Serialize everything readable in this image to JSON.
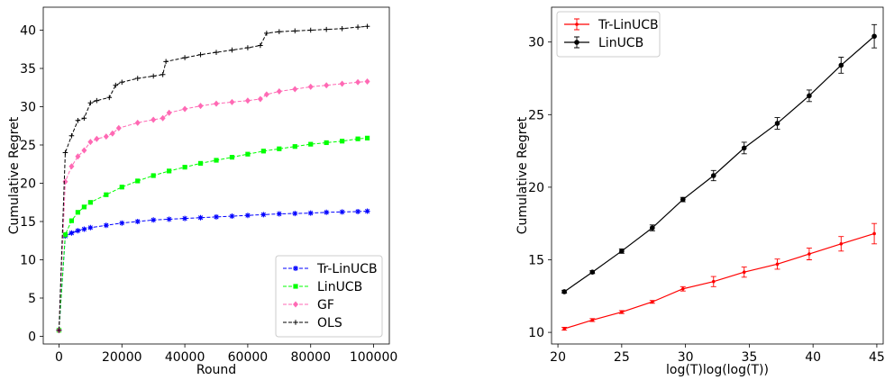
{
  "chart_data": [
    {
      "type": "line",
      "xlabel": "Round",
      "ylabel": "Cumulative Regret",
      "xlim": [
        -5000,
        105000
      ],
      "ylim": [
        -1,
        43
      ],
      "xticks": [
        0,
        20000,
        40000,
        60000,
        80000,
        100000
      ],
      "xtick_labels": [
        "0",
        "20000",
        "40000",
        "60000",
        "80000",
        "100000"
      ],
      "yticks": [
        0,
        5,
        10,
        15,
        20,
        25,
        30,
        35,
        40
      ],
      "ytick_labels": [
        "0",
        "5",
        "10",
        "15",
        "20",
        "25",
        "30",
        "35",
        "40"
      ],
      "legend_position": "bottom-right",
      "grid": false,
      "series": [
        {
          "name": "Tr-LinUCB",
          "color": "#0000ff",
          "marker": "star",
          "x": [
            0,
            2000,
            4000,
            6000,
            8000,
            10000,
            15000,
            20000,
            25000,
            30000,
            35000,
            40000,
            45000,
            50000,
            55000,
            60000,
            65000,
            70000,
            75000,
            80000,
            85000,
            90000,
            95000,
            98000
          ],
          "y": [
            0.8,
            13.1,
            13.5,
            13.8,
            14.0,
            14.2,
            14.5,
            14.8,
            15.0,
            15.2,
            15.3,
            15.4,
            15.5,
            15.6,
            15.7,
            15.8,
            15.9,
            16.0,
            16.05,
            16.1,
            16.2,
            16.25,
            16.3,
            16.35
          ]
        },
        {
          "name": "LinUCB",
          "color": "#00ff00",
          "marker": "square",
          "x": [
            0,
            2000,
            4000,
            6000,
            8000,
            10000,
            15000,
            20000,
            25000,
            30000,
            35000,
            40000,
            45000,
            50000,
            55000,
            60000,
            65000,
            70000,
            75000,
            80000,
            85000,
            90000,
            95000,
            98000
          ],
          "y": [
            0.8,
            13.3,
            15.1,
            16.2,
            16.9,
            17.5,
            18.5,
            19.5,
            20.3,
            21.0,
            21.6,
            22.1,
            22.6,
            23.0,
            23.4,
            23.8,
            24.2,
            24.5,
            24.8,
            25.1,
            25.3,
            25.5,
            25.8,
            25.9
          ]
        },
        {
          "name": "GF",
          "color": "#ff69b4",
          "marker": "diamond",
          "x": [
            0,
            2000,
            4000,
            6000,
            8000,
            10000,
            12000,
            15000,
            17000,
            19000,
            25000,
            30000,
            33000,
            35000,
            40000,
            45000,
            50000,
            55000,
            60000,
            64000,
            66000,
            70000,
            75000,
            80000,
            85000,
            90000,
            95000,
            98000
          ],
          "y": [
            0.8,
            20.2,
            22.2,
            23.5,
            24.3,
            25.4,
            25.8,
            26.1,
            26.5,
            27.2,
            27.9,
            28.3,
            28.5,
            29.2,
            29.7,
            30.1,
            30.4,
            30.6,
            30.8,
            31.0,
            31.6,
            32.0,
            32.3,
            32.6,
            32.8,
            33.0,
            33.2,
            33.3
          ]
        },
        {
          "name": "OLS",
          "color": "#000000",
          "marker": "plus",
          "x": [
            0,
            2000,
            4000,
            6000,
            8000,
            10000,
            12000,
            16000,
            18000,
            20000,
            25000,
            30000,
            33000,
            34000,
            40000,
            45000,
            50000,
            55000,
            60000,
            64000,
            66000,
            70000,
            75000,
            80000,
            85000,
            90000,
            95000,
            98000
          ],
          "y": [
            0.8,
            24.0,
            26.2,
            28.2,
            28.5,
            30.5,
            30.8,
            31.2,
            32.8,
            33.2,
            33.7,
            34.0,
            34.2,
            35.9,
            36.4,
            36.8,
            37.1,
            37.4,
            37.7,
            38.0,
            39.6,
            39.8,
            39.9,
            40.0,
            40.1,
            40.2,
            40.4,
            40.5
          ]
        }
      ]
    },
    {
      "type": "line",
      "xlabel": "log(T)log(log(T))",
      "ylabel": "Cumulative Regret",
      "xlim": [
        19.5,
        45.5
      ],
      "ylim": [
        9.2,
        32.4
      ],
      "xticks": [
        20,
        25,
        30,
        35,
        40,
        45
      ],
      "xtick_labels": [
        "20",
        "25",
        "30",
        "35",
        "40",
        "45"
      ],
      "yticks": [
        10,
        15,
        20,
        25,
        30
      ],
      "ytick_labels": [
        "10",
        "15",
        "20",
        "25",
        "30"
      ],
      "legend_position": "top-left",
      "grid": false,
      "error_bars": true,
      "series": [
        {
          "name": "Tr-LinUCB",
          "color": "#ff0000",
          "marker": "small-dot",
          "x": [
            20.5,
            22.7,
            25.0,
            27.4,
            29.8,
            32.2,
            34.6,
            37.2,
            39.7,
            42.2,
            44.8
          ],
          "y": [
            10.25,
            10.85,
            11.4,
            12.1,
            13.0,
            13.5,
            14.15,
            14.7,
            15.4,
            16.1,
            16.8
          ],
          "err": [
            0.1,
            0.1,
            0.1,
            0.1,
            0.15,
            0.35,
            0.35,
            0.35,
            0.4,
            0.5,
            0.7
          ]
        },
        {
          "name": "LinUCB",
          "color": "#000000",
          "marker": "dot",
          "x": [
            20.5,
            22.7,
            25.0,
            27.4,
            29.8,
            32.2,
            34.6,
            37.2,
            39.7,
            42.2,
            44.8
          ],
          "y": [
            12.8,
            14.15,
            15.6,
            17.2,
            19.15,
            20.8,
            22.7,
            24.4,
            26.3,
            28.4,
            30.4
          ],
          "err": [
            0.1,
            0.1,
            0.15,
            0.2,
            0.15,
            0.35,
            0.4,
            0.4,
            0.4,
            0.55,
            0.8
          ]
        }
      ]
    }
  ]
}
